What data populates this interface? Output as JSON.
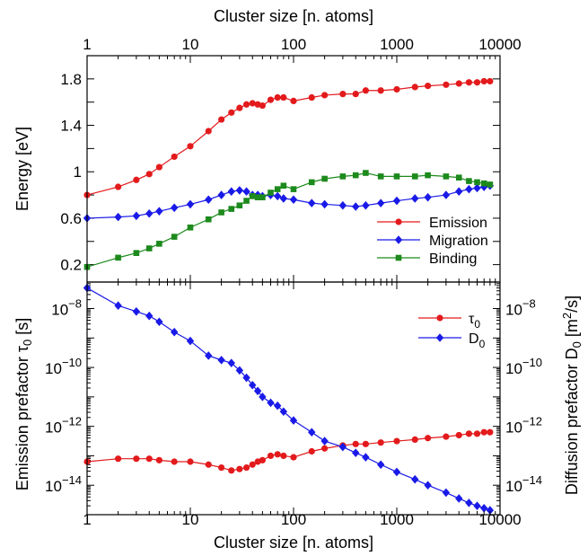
{
  "chart_data": [
    {
      "type": "line",
      "panel": "top",
      "x_scale": "log",
      "xlim": [
        1,
        10000
      ],
      "x_ticks": [
        1,
        10,
        100,
        1000,
        10000
      ],
      "x_tick_labels": [
        "1",
        "10",
        "100",
        "1000",
        "10000"
      ],
      "xlabel_top": "Cluster size [n. atoms]",
      "ylabel": "Energy [eV]",
      "ylim": [
        0.05,
        2.0
      ],
      "y_ticks": [
        0.2,
        0.6,
        1.0,
        1.4,
        1.8
      ],
      "y_tick_labels": [
        "0.2",
        "0.6",
        "1",
        "1.4",
        "1.8"
      ],
      "legend_position": "bottom-right",
      "series": [
        {
          "name": "Emission",
          "color": "#e31a1c",
          "marker": "circle",
          "x": [
            1,
            2,
            3,
            4,
            5,
            7,
            10,
            15,
            20,
            25,
            30,
            35,
            40,
            45,
            50,
            60,
            70,
            80,
            100,
            150,
            200,
            300,
            400,
            500,
            700,
            1000,
            1500,
            2000,
            3000,
            4000,
            5000,
            6000,
            7000,
            8000
          ],
          "y": [
            0.8,
            0.87,
            0.93,
            0.98,
            1.04,
            1.13,
            1.22,
            1.35,
            1.45,
            1.51,
            1.55,
            1.58,
            1.59,
            1.58,
            1.57,
            1.62,
            1.64,
            1.64,
            1.61,
            1.64,
            1.66,
            1.67,
            1.67,
            1.7,
            1.7,
            1.71,
            1.73,
            1.74,
            1.75,
            1.76,
            1.77,
            1.77,
            1.78,
            1.78
          ]
        },
        {
          "name": "Migration",
          "color": "#1a1ae8",
          "marker": "diamond",
          "x": [
            1,
            2,
            3,
            4,
            5,
            7,
            10,
            15,
            20,
            25,
            30,
            35,
            40,
            45,
            50,
            60,
            70,
            80,
            100,
            150,
            200,
            300,
            400,
            500,
            700,
            1000,
            1500,
            2000,
            3000,
            4000,
            5000,
            6000,
            7000,
            8000
          ],
          "y": [
            0.6,
            0.61,
            0.62,
            0.64,
            0.66,
            0.69,
            0.72,
            0.76,
            0.8,
            0.83,
            0.84,
            0.83,
            0.8,
            0.8,
            0.79,
            0.8,
            0.79,
            0.77,
            0.76,
            0.73,
            0.72,
            0.71,
            0.7,
            0.71,
            0.73,
            0.75,
            0.77,
            0.78,
            0.8,
            0.83,
            0.85,
            0.86,
            0.87,
            0.88
          ]
        },
        {
          "name": "Binding",
          "color": "#1c8a1c",
          "marker": "square",
          "x": [
            1,
            2,
            3,
            4,
            5,
            7,
            10,
            15,
            20,
            25,
            30,
            35,
            40,
            45,
            50,
            60,
            70,
            80,
            100,
            150,
            200,
            300,
            400,
            500,
            700,
            1000,
            1500,
            2000,
            3000,
            4000,
            5000,
            6000,
            7000,
            8000
          ],
          "y": [
            0.18,
            0.26,
            0.3,
            0.34,
            0.38,
            0.44,
            0.52,
            0.59,
            0.65,
            0.68,
            0.71,
            0.75,
            0.79,
            0.78,
            0.78,
            0.82,
            0.85,
            0.88,
            0.85,
            0.91,
            0.94,
            0.96,
            0.97,
            0.99,
            0.96,
            0.96,
            0.96,
            0.97,
            0.96,
            0.95,
            0.92,
            0.91,
            0.9,
            0.89
          ]
        }
      ]
    },
    {
      "type": "line",
      "panel": "bottom",
      "x_scale": "log",
      "xlim": [
        1,
        10000
      ],
      "x_ticks": [
        1,
        10,
        100,
        1000,
        10000
      ],
      "x_tick_labels": [
        "1",
        "10",
        "100",
        "1000",
        "10000"
      ],
      "xlabel": "Cluster size [n. atoms]",
      "y_scale": "log",
      "ylim_exponent": [
        -15,
        -7.1
      ],
      "ylabel_left": "Emission prefactor τ",
      "ylabel_left_sub": "0",
      "ylabel_left_unit": " [s]",
      "ylabel_right": "Diffusion prefactor D",
      "ylabel_right_sub": "0",
      "ylabel_right_unit": " [m",
      "ylabel_right_sup": "2",
      "ylabel_right_unit_end": "/s]",
      "y_tick_base": "10",
      "y_tick_exponents": [
        "-8",
        "-10",
        "-12",
        "-14"
      ],
      "legend_position": "top-right",
      "series": [
        {
          "name": "τ",
          "name_sub": "0",
          "color": "#e31a1c",
          "marker": "circle",
          "x": [
            1,
            2,
            3,
            4,
            5,
            7,
            10,
            15,
            20,
            25,
            30,
            35,
            40,
            45,
            50,
            60,
            70,
            80,
            100,
            150,
            200,
            300,
            400,
            500,
            700,
            1000,
            1500,
            2000,
            3000,
            4000,
            5000,
            6000,
            7000,
            8000
          ],
          "y_exp": [
            -13.2,
            -13.1,
            -13.1,
            -13.1,
            -13.15,
            -13.2,
            -13.2,
            -13.3,
            -13.4,
            -13.5,
            -13.45,
            -13.4,
            -13.3,
            -13.2,
            -13.15,
            -13.0,
            -12.95,
            -13.0,
            -13.05,
            -12.85,
            -12.75,
            -12.65,
            -12.6,
            -12.6,
            -12.55,
            -12.5,
            -12.45,
            -12.4,
            -12.35,
            -12.3,
            -12.25,
            -12.25,
            -12.2,
            -12.2
          ]
        },
        {
          "name": "D",
          "name_sub": "0",
          "color": "#1a1ae8",
          "marker": "diamond",
          "x": [
            1,
            2,
            3,
            4,
            5,
            7,
            10,
            15,
            20,
            25,
            30,
            35,
            40,
            45,
            50,
            60,
            70,
            80,
            100,
            150,
            200,
            300,
            400,
            500,
            700,
            1000,
            1500,
            2000,
            3000,
            4000,
            5000,
            6000,
            7000,
            8000
          ],
          "y_exp": [
            -7.3,
            -7.9,
            -8.1,
            -8.25,
            -8.45,
            -8.8,
            -9.1,
            -9.6,
            -9.75,
            -9.85,
            -10.1,
            -10.35,
            -10.6,
            -10.8,
            -11.0,
            -11.2,
            -11.3,
            -11.5,
            -11.8,
            -12.2,
            -12.5,
            -12.7,
            -12.9,
            -13.05,
            -13.3,
            -13.55,
            -13.8,
            -14.0,
            -14.25,
            -14.45,
            -14.6,
            -14.7,
            -14.78,
            -14.85
          ]
        }
      ]
    }
  ]
}
